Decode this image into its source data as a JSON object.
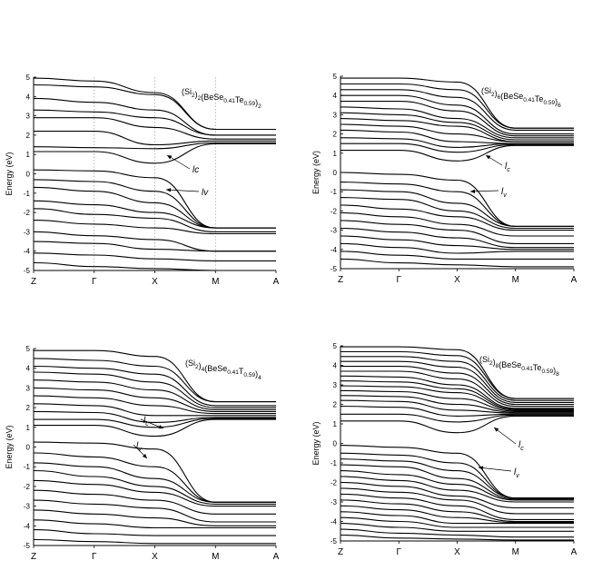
{
  "chart_data": [
    {
      "type": "line",
      "title": "(Si₂)₂(BeSe₀.₄₁Te₀.₅₉)₂",
      "title_parts": {
        "a": "(Si",
        "a_sub": "2",
        "b": ")",
        "b_sub": "2",
        "c": "(BeSe",
        "c_sub": "0.41",
        "d": "Te",
        "d_sub": "0.59",
        "e": ")",
        "e_sub": "2"
      },
      "ylabel": "Energy (eV)",
      "ylim": [
        -5,
        5
      ],
      "yticks": [
        "5",
        "4",
        "3",
        "2",
        "1",
        "0",
        "-1",
        "-2",
        "-3",
        "-4",
        "-5"
      ],
      "xticks": [
        "Z",
        "Γ",
        "X",
        "M",
        "A"
      ],
      "k_points": [
        0,
        1,
        2,
        3,
        4
      ],
      "grid": false,
      "dotted_verticals": [
        1,
        2,
        3
      ],
      "annotations": [
        {
          "text": "lc",
          "sub": ""
        },
        {
          "text": "lv",
          "sub": ""
        }
      ],
      "band_edges": {
        "conduction_min": 0.55,
        "valence_max": 0.2
      },
      "series": [
        {
          "values": [
            4.95,
            4.8,
            4.2,
            2.3,
            2.3
          ]
        },
        {
          "values": [
            4.6,
            4.5,
            4.1,
            2.3,
            2.3
          ]
        },
        {
          "values": [
            3.9,
            3.7,
            3.3,
            2.0,
            2.0
          ]
        },
        {
          "values": [
            3.3,
            3.2,
            2.9,
            2.0,
            2.0
          ]
        },
        {
          "values": [
            2.9,
            2.9,
            2.4,
            1.8,
            1.8
          ]
        },
        {
          "values": [
            2.2,
            2.2,
            1.5,
            1.7,
            1.7
          ]
        },
        {
          "values": [
            1.4,
            1.35,
            1.3,
            1.6,
            1.6
          ]
        },
        {
          "values": [
            1.15,
            1.15,
            0.55,
            1.55,
            1.55
          ]
        },
        {
          "values": [
            0.2,
            0.15,
            -0.2,
            -2.8,
            -2.8
          ]
        },
        {
          "values": [
            -0.3,
            -0.4,
            -0.9,
            -2.8,
            -2.8
          ]
        },
        {
          "values": [
            -0.7,
            -0.9,
            -1.5,
            -2.8,
            -2.8
          ]
        },
        {
          "values": [
            -1.4,
            -1.6,
            -2.0,
            -2.8,
            -2.8
          ]
        },
        {
          "values": [
            -1.8,
            -2.1,
            -2.3,
            -3.0,
            -3.0
          ]
        },
        {
          "values": [
            -2.4,
            -2.6,
            -2.8,
            -3.1,
            -3.1
          ]
        },
        {
          "values": [
            -3.0,
            -3.2,
            -3.4,
            -4.0,
            -4.0
          ]
        },
        {
          "values": [
            -3.5,
            -3.6,
            -3.9,
            -4.0,
            -4.0
          ]
        },
        {
          "values": [
            -4.1,
            -4.2,
            -4.4,
            -4.5,
            -4.5
          ]
        },
        {
          "values": [
            -4.6,
            -4.8,
            -4.9,
            -5.0,
            -5.0
          ]
        }
      ]
    },
    {
      "type": "line",
      "title": "(Si₂)₆(BeSe₀.₄₁Te₀.₅₉)₆",
      "title_parts": {
        "a": "(Si",
        "a_sub": "2",
        "b": ")",
        "b_sub": "6",
        "c": "(BeSe",
        "c_sub": "0.41",
        "d": "Te",
        "d_sub": "0.59",
        "e": ")",
        "e_sub": "6"
      },
      "ylabel": "Energy (eV)",
      "ylim": [
        -5,
        5
      ],
      "yticks": [
        "5",
        "4",
        "3",
        "2",
        "1",
        "0",
        "-1",
        "-2",
        "-3",
        "-4",
        "-5"
      ],
      "xticks": [
        "Z",
        "Γ",
        "X",
        "M",
        "A"
      ],
      "k_points": [
        0,
        1,
        2,
        3,
        4
      ],
      "grid": false,
      "dotted_verticals": [],
      "annotations": [
        {
          "text": "l",
          "sub": "c"
        },
        {
          "text": "l",
          "sub": "v"
        }
      ],
      "band_edges": {
        "conduction_min": 0.6,
        "valence_max": 0.0
      },
      "series": [
        {
          "values": [
            4.9,
            4.9,
            4.7,
            2.3,
            2.3
          ]
        },
        {
          "values": [
            4.6,
            4.6,
            4.3,
            2.3,
            2.3
          ]
        },
        {
          "values": [
            4.3,
            4.3,
            3.9,
            2.2,
            2.2
          ]
        },
        {
          "values": [
            4.0,
            4.0,
            3.5,
            2.0,
            2.0
          ]
        },
        {
          "values": [
            3.7,
            3.7,
            3.2,
            1.9,
            1.9
          ]
        },
        {
          "values": [
            3.4,
            3.3,
            2.8,
            1.8,
            1.8
          ]
        },
        {
          "values": [
            3.1,
            3.0,
            2.6,
            1.7,
            1.7
          ]
        },
        {
          "values": [
            2.8,
            2.7,
            2.4,
            1.6,
            1.6
          ]
        },
        {
          "values": [
            2.5,
            2.4,
            2.0,
            1.6,
            1.6
          ]
        },
        {
          "values": [
            2.2,
            2.1,
            1.6,
            1.5,
            1.5
          ]
        },
        {
          "values": [
            1.8,
            1.75,
            1.3,
            1.5,
            1.5
          ]
        },
        {
          "values": [
            1.5,
            1.5,
            1.05,
            1.45,
            1.45
          ]
        },
        {
          "values": [
            1.15,
            1.15,
            0.6,
            1.4,
            1.4
          ]
        },
        {
          "values": [
            0.0,
            -0.1,
            -0.4,
            -2.8,
            -2.8
          ]
        },
        {
          "values": [
            -0.5,
            -0.6,
            -1.0,
            -2.8,
            -2.8
          ]
        },
        {
          "values": [
            -0.9,
            -1.0,
            -1.6,
            -2.8,
            -2.8
          ]
        },
        {
          "values": [
            -1.3,
            -1.4,
            -2.0,
            -2.9,
            -2.9
          ]
        },
        {
          "values": [
            -1.7,
            -1.9,
            -2.3,
            -3.0,
            -3.0
          ]
        },
        {
          "values": [
            -2.1,
            -2.3,
            -2.7,
            -3.3,
            -3.3
          ]
        },
        {
          "values": [
            -2.5,
            -2.7,
            -3.0,
            -3.7,
            -3.7
          ]
        },
        {
          "values": [
            -2.9,
            -3.1,
            -3.4,
            -3.9,
            -3.9
          ]
        },
        {
          "values": [
            -3.3,
            -3.5,
            -3.8,
            -4.0,
            -4.0
          ]
        },
        {
          "values": [
            -3.7,
            -3.9,
            -4.2,
            -4.1,
            -4.1
          ]
        },
        {
          "values": [
            -4.1,
            -4.3,
            -4.5,
            -4.5,
            -4.5
          ]
        },
        {
          "values": [
            -4.5,
            -4.7,
            -4.8,
            -4.9,
            -4.9
          ]
        }
      ]
    },
    {
      "type": "line",
      "title": "(Si₂)₄(BeSe₀.₄₁T₀.₅₉)₄",
      "title_parts": {
        "a": "(Si",
        "a_sub": "2",
        "b": ")",
        "b_sub": "4",
        "c": "(BeSe",
        "c_sub": "0.41",
        "d": "T",
        "d_sub": "0.59",
        "e": ")",
        "e_sub": "4"
      },
      "ylabel": "Energy (eV)",
      "ylim": [
        -5,
        5
      ],
      "yticks": [
        "5",
        "4",
        "3",
        "2",
        "1",
        "0",
        "-1",
        "-2",
        "-3",
        "-4",
        "-5"
      ],
      "xticks": [
        "Z",
        "Γ",
        "X",
        "M",
        "A"
      ],
      "k_points": [
        0,
        1,
        2,
        3,
        4
      ],
      "grid": false,
      "dotted_verticals": [],
      "annotations": [
        {
          "text": "l",
          "sub": "c"
        },
        {
          "text": "l",
          "sub": "v"
        }
      ],
      "band_edges": {
        "conduction_min": 0.55,
        "valence_max": 0.25
      },
      "series": [
        {
          "values": [
            4.9,
            4.9,
            4.6,
            2.3,
            2.3
          ]
        },
        {
          "values": [
            4.5,
            4.4,
            4.1,
            2.3,
            2.3
          ]
        },
        {
          "values": [
            4.1,
            4.0,
            3.7,
            2.1,
            2.1
          ]
        },
        {
          "values": [
            3.8,
            3.7,
            3.3,
            2.0,
            2.0
          ]
        },
        {
          "values": [
            3.4,
            3.3,
            2.9,
            1.9,
            1.9
          ]
        },
        {
          "values": [
            3.0,
            2.9,
            2.5,
            1.8,
            1.8
          ]
        },
        {
          "values": [
            2.6,
            2.5,
            2.1,
            1.7,
            1.7
          ]
        },
        {
          "values": [
            2.2,
            2.1,
            1.6,
            1.6,
            1.6
          ]
        },
        {
          "values": [
            1.8,
            1.75,
            1.25,
            1.5,
            1.5
          ]
        },
        {
          "values": [
            1.4,
            1.4,
            1.0,
            1.45,
            1.45
          ]
        },
        {
          "values": [
            1.1,
            1.1,
            0.55,
            1.4,
            1.4
          ]
        },
        {
          "values": [
            0.25,
            0.2,
            -0.1,
            -2.8,
            -2.8
          ]
        },
        {
          "values": [
            -0.3,
            -0.5,
            -1.0,
            -2.8,
            -2.8
          ]
        },
        {
          "values": [
            -0.8,
            -1.0,
            -1.6,
            -2.8,
            -2.8
          ]
        },
        {
          "values": [
            -1.2,
            -1.5,
            -2.0,
            -2.9,
            -2.9
          ]
        },
        {
          "values": [
            -1.7,
            -1.9,
            -2.3,
            -3.0,
            -3.0
          ]
        },
        {
          "values": [
            -2.2,
            -2.4,
            -2.7,
            -3.4,
            -3.4
          ]
        },
        {
          "values": [
            -2.7,
            -2.9,
            -3.1,
            -3.8,
            -3.8
          ]
        },
        {
          "values": [
            -3.2,
            -3.4,
            -3.6,
            -4.0,
            -4.0
          ]
        },
        {
          "values": [
            -3.7,
            -3.9,
            -4.1,
            -4.1,
            -4.1
          ]
        },
        {
          "values": [
            -4.2,
            -4.4,
            -4.5,
            -4.5,
            -4.5
          ]
        },
        {
          "values": [
            -4.7,
            -4.8,
            -4.9,
            -4.9,
            -4.9
          ]
        }
      ]
    },
    {
      "type": "line",
      "title": "(Si₂)₈(BeSe₀.₄₁Te₀.₅₉)₈",
      "title_parts": {
        "a": "(Si",
        "a_sub": "2",
        "b": ")",
        "b_sub": "8",
        "c": "(BeSe",
        "c_sub": "0.41",
        "d": "Te",
        "d_sub": "0.59",
        "e": ")",
        "e_sub": "8"
      },
      "ylabel": "Energy (eV)",
      "ylim": [
        -5,
        5
      ],
      "yticks": [
        "5",
        "4",
        "3",
        "2",
        "1",
        "0",
        "-1",
        "-2",
        "-3",
        "-4",
        "-5"
      ],
      "xticks": [
        "Z",
        "Γ",
        "X",
        "M",
        "A"
      ],
      "k_points": [
        0,
        1,
        2,
        3,
        4
      ],
      "grid": false,
      "dotted_verticals": [],
      "annotations": [
        {
          "text": "l",
          "sub": "c"
        },
        {
          "text": "l",
          "sub": "v"
        }
      ],
      "band_edges": {
        "conduction_min": 0.55,
        "valence_max": -0.1
      },
      "series": [
        {
          "values": [
            4.95,
            4.95,
            4.8,
            2.3,
            2.3
          ]
        },
        {
          "values": [
            4.7,
            4.7,
            4.5,
            2.3,
            2.3
          ]
        },
        {
          "values": [
            4.45,
            4.45,
            4.2,
            2.2,
            2.2
          ]
        },
        {
          "values": [
            4.2,
            4.2,
            3.9,
            2.1,
            2.1
          ]
        },
        {
          "values": [
            3.95,
            3.95,
            3.6,
            2.0,
            2.0
          ]
        },
        {
          "values": [
            3.7,
            3.7,
            3.3,
            1.9,
            1.9
          ]
        },
        {
          "values": [
            3.45,
            3.4,
            3.0,
            1.8,
            1.8
          ]
        },
        {
          "values": [
            3.2,
            3.15,
            2.8,
            1.75,
            1.75
          ]
        },
        {
          "values": [
            2.95,
            2.9,
            2.6,
            1.7,
            1.7
          ]
        },
        {
          "values": [
            2.7,
            2.65,
            2.3,
            1.65,
            1.65
          ]
        },
        {
          "values": [
            2.45,
            2.4,
            2.0,
            1.6,
            1.6
          ]
        },
        {
          "values": [
            2.2,
            2.15,
            1.7,
            1.55,
            1.55
          ]
        },
        {
          "values": [
            1.9,
            1.85,
            1.4,
            1.5,
            1.5
          ]
        },
        {
          "values": [
            1.5,
            1.5,
            1.1,
            1.45,
            1.45
          ]
        },
        {
          "values": [
            1.15,
            1.15,
            0.55,
            1.4,
            1.4
          ]
        },
        {
          "values": [
            -0.1,
            -0.2,
            -0.5,
            -2.8,
            -2.8
          ]
        },
        {
          "values": [
            -0.5,
            -0.6,
            -1.0,
            -2.8,
            -2.8
          ]
        },
        {
          "values": [
            -0.8,
            -0.9,
            -1.4,
            -2.8,
            -2.8
          ]
        },
        {
          "values": [
            -1.1,
            -1.2,
            -1.8,
            -2.85,
            -2.85
          ]
        },
        {
          "values": [
            -1.4,
            -1.6,
            -2.1,
            -2.9,
            -2.9
          ]
        },
        {
          "values": [
            -1.7,
            -1.9,
            -2.4,
            -3.0,
            -3.0
          ]
        },
        {
          "values": [
            -2.0,
            -2.2,
            -2.7,
            -3.3,
            -3.3
          ]
        },
        {
          "values": [
            -2.3,
            -2.5,
            -2.9,
            -3.6,
            -3.6
          ]
        },
        {
          "values": [
            -2.6,
            -2.8,
            -3.2,
            -3.9,
            -3.9
          ]
        },
        {
          "values": [
            -2.9,
            -3.1,
            -3.5,
            -4.0,
            -4.0
          ]
        },
        {
          "values": [
            -3.2,
            -3.4,
            -3.8,
            -4.05,
            -4.05
          ]
        },
        {
          "values": [
            -3.5,
            -3.7,
            -4.1,
            -4.1,
            -4.1
          ]
        },
        {
          "values": [
            -3.8,
            -4.0,
            -4.3,
            -4.3,
            -4.3
          ]
        },
        {
          "values": [
            -4.1,
            -4.3,
            -4.5,
            -4.5,
            -4.5
          ]
        },
        {
          "values": [
            -4.4,
            -4.6,
            -4.7,
            -4.8,
            -4.8
          ]
        },
        {
          "values": [
            -4.7,
            -4.85,
            -4.9,
            -4.95,
            -4.95
          ]
        }
      ]
    }
  ]
}
